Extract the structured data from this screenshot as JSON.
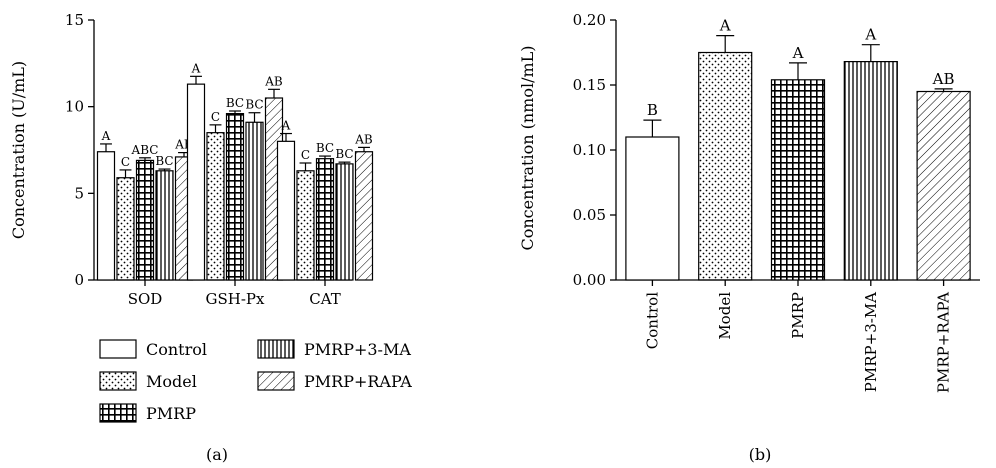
{
  "chart_data": [
    {
      "panel_label": "(a)",
      "type": "bar",
      "categories": [
        "SOD",
        "GSH-Px",
        "CAT"
      ],
      "ylabel": "Concentration (U/mL)",
      "xlabel": "",
      "ylim": [
        0,
        15
      ],
      "yticks": [
        "0",
        "5",
        "10",
        "15"
      ],
      "series": [
        {
          "name": "Control",
          "pattern": "blank",
          "values": [
            7.4,
            11.3,
            8.0
          ],
          "errors": [
            0.45,
            0.45,
            0.45
          ],
          "letters": [
            "A",
            "A",
            "A"
          ]
        },
        {
          "name": "Model",
          "pattern": "dots",
          "values": [
            5.9,
            8.5,
            6.3
          ],
          "errors": [
            0.45,
            0.45,
            0.45
          ],
          "letters": [
            "C",
            "C",
            "C"
          ]
        },
        {
          "name": "PMRP",
          "pattern": "grid",
          "values": [
            6.9,
            9.6,
            7.0
          ],
          "errors": [
            0.15,
            0.15,
            0.15
          ],
          "letters": [
            "ABC",
            "BC",
            "BC"
          ]
        },
        {
          "name": "PMRP+3-MA",
          "pattern": "vertical",
          "values": [
            6.3,
            9.1,
            6.7
          ],
          "errors": [
            0.1,
            0.55,
            0.1
          ],
          "letters": [
            "BC",
            "BC",
            "BC"
          ]
        },
        {
          "name": "PMRP+RAPA",
          "pattern": "diagonal",
          "values": [
            7.1,
            10.5,
            7.4
          ],
          "errors": [
            0.25,
            0.5,
            0.25
          ],
          "letters": [
            "AB",
            "AB",
            "AB"
          ]
        }
      ],
      "legend": {
        "entries": [
          "Control",
          "Model",
          "PMRP",
          "PMRP+3-MA",
          "PMRP+RAPA"
        ],
        "placement": "bottom"
      },
      "grid": false
    },
    {
      "panel_label": "(b)",
      "type": "bar",
      "categories": [
        "Control",
        "Model",
        "PMRP",
        "PMRP+3-MA",
        "PMRP+RAPA"
      ],
      "ylabel": "Concentration (nmol/mL)",
      "xlabel": "",
      "ylim": [
        0,
        0.2
      ],
      "yticks": [
        "0.00",
        "0.05",
        "0.10",
        "0.15",
        "0.20"
      ],
      "patterns": [
        "blank",
        "dots",
        "grid",
        "vertical",
        "diagonal"
      ],
      "values": [
        0.11,
        0.175,
        0.154,
        0.168,
        0.145
      ],
      "errors": [
        0.013,
        0.013,
        0.013,
        0.013,
        0.002
      ],
      "letters": [
        "B",
        "A",
        "A",
        "A",
        "AB"
      ],
      "grid": false
    }
  ]
}
